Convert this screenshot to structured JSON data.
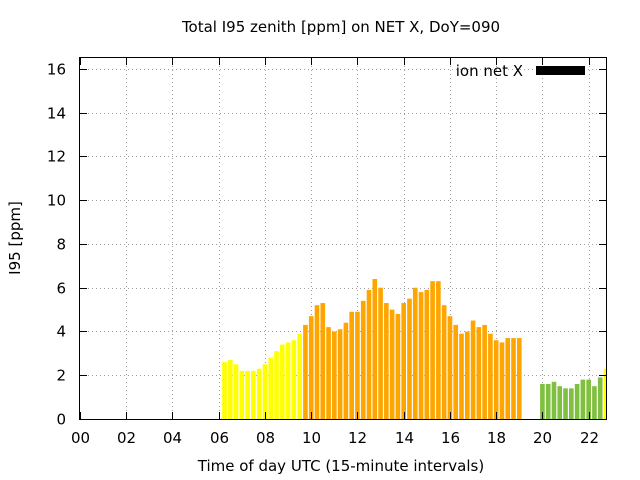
{
  "chart_data": {
    "type": "bar",
    "title": "Total I95 zenith [ppm] on NET X, DoY=090",
    "xlabel": "Time of day UTC (15-minute intervals)",
    "ylabel": "I95 [ppm]",
    "xlim": [
      0,
      22.75
    ],
    "ylim": [
      0,
      16.5
    ],
    "x_ticks": [
      0,
      2,
      4,
      6,
      8,
      10,
      12,
      14,
      16,
      18,
      20,
      22
    ],
    "x_tick_labels": [
      "00",
      "02",
      "04",
      "06",
      "08",
      "10",
      "12",
      "14",
      "16",
      "18",
      "20",
      "22"
    ],
    "y_ticks": [
      0,
      2,
      4,
      6,
      8,
      10,
      12,
      14,
      16
    ],
    "y_tick_labels": [
      "0",
      "2",
      "4",
      "6",
      "8",
      "10",
      "12",
      "14",
      "16"
    ],
    "grid": true,
    "legend": {
      "label": "ion net X",
      "color": "#000000",
      "placement": "top-right"
    },
    "colors": {
      "yellow": "#ffff00",
      "orange": "#ffa500",
      "green": "#80c040"
    },
    "bar_interval_hours": 0.25,
    "series": [
      {
        "color": "yellow",
        "x": [
          6.25,
          6.5,
          6.75,
          7.0,
          7.25,
          7.5,
          7.75,
          8.0,
          8.25,
          8.5,
          8.75,
          9.0,
          9.25,
          9.5
        ],
        "values": [
          2.6,
          2.7,
          2.5,
          2.2,
          2.2,
          2.2,
          2.3,
          2.5,
          2.8,
          3.1,
          3.4,
          3.5,
          3.6,
          3.9
        ]
      },
      {
        "color": "orange",
        "x": [
          9.75,
          10.0,
          10.25,
          10.5,
          10.75,
          11.0,
          11.25,
          11.5,
          11.75,
          12.0,
          12.25,
          12.5,
          12.75,
          13.0,
          13.25,
          13.5,
          13.75,
          14.0,
          14.25,
          14.5,
          14.75,
          15.0,
          15.25,
          15.5,
          15.75,
          16.0,
          16.25,
          16.5,
          16.75,
          17.0,
          17.25,
          17.5,
          17.75,
          18.0,
          18.25,
          18.5,
          18.75,
          19.0
        ],
        "values": [
          4.3,
          4.7,
          5.2,
          5.3,
          4.2,
          4.0,
          4.1,
          4.4,
          4.9,
          4.9,
          5.4,
          5.9,
          6.4,
          6.0,
          5.3,
          5.0,
          4.8,
          5.3,
          5.5,
          6.0,
          5.8,
          5.9,
          6.3,
          6.3,
          5.2,
          4.7,
          4.3,
          3.9,
          4.0,
          4.5,
          4.2,
          4.3,
          3.9,
          3.6,
          3.5,
          3.7,
          3.7,
          3.7
        ]
      },
      {
        "color": "green",
        "x": [
          20.0,
          20.25,
          20.5,
          20.75,
          21.0,
          21.25,
          21.5,
          21.75,
          22.0,
          22.25,
          22.5
        ],
        "values": [
          1.6,
          1.6,
          1.7,
          1.5,
          1.4,
          1.4,
          1.6,
          1.8,
          1.8,
          1.5,
          1.9
        ]
      },
      {
        "color": "yellow",
        "x": [
          22.75
        ],
        "values": [
          2.3
        ]
      }
    ]
  }
}
